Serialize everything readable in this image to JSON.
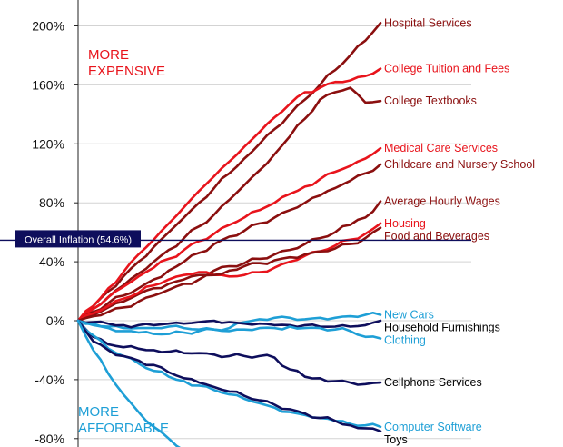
{
  "chart_data": {
    "type": "line",
    "y_unit": "%",
    "ylim": [
      -80,
      200
    ],
    "y_ticks": [
      200,
      160,
      120,
      80,
      40,
      0,
      -40,
      -80
    ],
    "y_tick_labels": [
      "200%",
      "160%",
      "120%",
      "80%",
      "40%",
      "0%",
      "-40%",
      "-80%"
    ],
    "grid": true,
    "x_steps": 20,
    "annotations": {
      "more_expensive": [
        "MORE",
        "EXPENSIVE"
      ],
      "more_affordable": [
        "MORE",
        "AFFORDABLE"
      ]
    },
    "reference_line": {
      "label": "Overall Inflation (54.6%)",
      "value": 54.6
    },
    "colors": {
      "dark_red": "#8b0f0f",
      "red": "#e8141c",
      "navy": "#0e0e5c",
      "light_blue": "#1e9fd6",
      "annotation_red": "#e8141c",
      "annotation_blue": "#1e9fd6"
    },
    "series": [
      {
        "name": "Hospital Services",
        "color": "#8b0f0f",
        "final": 202,
        "values": [
          0,
          10,
          20,
          30,
          40,
          50,
          60,
          70,
          80,
          90,
          100,
          110,
          120,
          130,
          140,
          150,
          160,
          170,
          180,
          190,
          202
        ]
      },
      {
        "name": "College Tuition and Fees",
        "color": "#e8141c",
        "final": 171,
        "values": [
          0,
          10,
          22,
          33,
          45,
          55,
          66,
          77,
          88,
          98,
          108,
          118,
          128,
          138,
          147,
          155,
          158,
          162,
          163,
          166,
          171
        ]
      },
      {
        "name": "College Textbooks",
        "color": "#8b0f0f",
        "final": 149,
        "values": [
          0,
          8,
          16,
          24,
          32,
          40,
          48,
          56,
          64,
          72,
          82,
          92,
          102,
          113,
          125,
          137,
          150,
          155,
          158,
          148,
          149
        ]
      },
      {
        "name": "Medical Care Services",
        "color": "#e8141c",
        "final": 117,
        "values": [
          0,
          8,
          16,
          23,
          30,
          36,
          42,
          48,
          54,
          59,
          65,
          70,
          75,
          80,
          86,
          91,
          96,
          101,
          105,
          110,
          117
        ]
      },
      {
        "name": "Childcare and Nursery School",
        "color": "#8b0f0f",
        "final": 106,
        "values": [
          0,
          6,
          12,
          17,
          22,
          28,
          34,
          40,
          46,
          52,
          57,
          61,
          66,
          70,
          75,
          80,
          85,
          90,
          95,
          100,
          106
        ]
      },
      {
        "name": "Average Hourly Wages",
        "color": "#8b0f0f",
        "final": 81,
        "values": [
          0,
          4,
          9,
          13,
          18,
          22,
          25,
          28,
          31,
          34,
          37,
          39,
          42,
          45,
          48,
          52,
          56,
          60,
          65,
          70,
          81
        ]
      },
      {
        "name": "Housing",
        "color": "#e8141c",
        "final": 66,
        "values": [
          0,
          5,
          10,
          15,
          19,
          24,
          28,
          31,
          33,
          31,
          30,
          31,
          33,
          36,
          40,
          44,
          47,
          51,
          55,
          59,
          66
        ]
      },
      {
        "name": "Food and Beverages",
        "color": "#8b0f0f",
        "final": 63,
        "values": [
          0,
          3,
          6,
          9,
          13,
          17,
          21,
          25,
          28,
          31,
          34,
          37,
          39,
          41,
          43,
          45,
          47,
          49,
          52,
          56,
          63
        ]
      },
      {
        "name": "New Cars",
        "color": "#1e9fd6",
        "final": 4,
        "values": [
          0,
          -2,
          -4,
          -5,
          -5,
          -5,
          -4,
          -5,
          -6,
          -6,
          -5,
          -1,
          1,
          2,
          2,
          1,
          2,
          2,
          3,
          4,
          4
        ]
      },
      {
        "name": "Household Furnishings",
        "color": "#0e0e5c",
        "final": 0,
        "values": [
          0,
          -1,
          -2,
          -3,
          -3,
          -3,
          -2,
          -2,
          -1,
          0,
          -1,
          -2,
          -2,
          -3,
          -3,
          -3,
          -4,
          -4,
          -4,
          -3,
          0
        ]
      },
      {
        "name": "Clothing",
        "color": "#1e9fd6",
        "final": -12,
        "values": [
          0,
          -3,
          -5,
          -7,
          -8,
          -9,
          -9,
          -8,
          -7,
          -6,
          -7,
          -6,
          -5,
          -5,
          -4,
          -5,
          -5,
          -6,
          -7,
          -11,
          -12
        ]
      },
      {
        "name": "Cellphone Services",
        "color": "#0e0e5c",
        "final": -42,
        "values": [
          0,
          -11,
          -16,
          -18,
          -19,
          -20,
          -21,
          -22,
          -22,
          -23,
          -24,
          -24,
          -24,
          -25,
          -33,
          -38,
          -39,
          -41,
          -42,
          -43,
          -42
        ]
      },
      {
        "name": "Computer Software",
        "color": "#1e9fd6",
        "final": -72,
        "values": [
          0,
          -10,
          -19,
          -24,
          -29,
          -34,
          -38,
          -41,
          -44,
          -47,
          -50,
          -53,
          -56,
          -59,
          -62,
          -64,
          -66,
          -68,
          -70,
          -71,
          -72
        ]
      },
      {
        "name": "Toys",
        "color": "#0e0e5c",
        "final": -75,
        "values": [
          0,
          -14,
          -20,
          -24,
          -27,
          -30,
          -35,
          -39,
          -42,
          -45,
          -48,
          -51,
          -54,
          -57,
          -60,
          -63,
          -66,
          -68,
          -71,
          -73,
          -75
        ]
      },
      {
        "name": "",
        "color": "#1e9fd6",
        "final": -88,
        "values": [
          0,
          -20,
          -36,
          -50,
          -62,
          -72,
          -80,
          -88
        ]
      }
    ]
  }
}
